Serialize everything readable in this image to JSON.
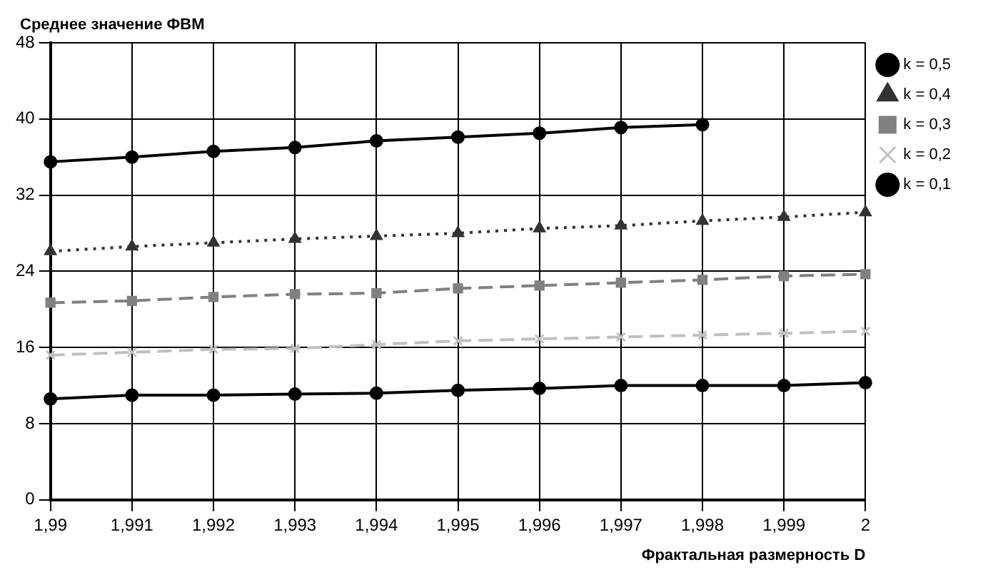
{
  "chart_data": {
    "type": "line",
    "ylabel": "Среднее значение ФВМ",
    "xlabel": "Фрактальная размерность D",
    "categories": [
      "1,99",
      "1,991",
      "1,992",
      "1,993",
      "1,994",
      "1,995",
      "1,996",
      "1,997",
      "1,998",
      "1,999",
      "2"
    ],
    "ylim": [
      0,
      48
    ],
    "yticks": [
      0,
      8,
      16,
      24,
      32,
      40,
      48
    ],
    "grid": true,
    "legend": "top right",
    "series": [
      {
        "name": "k = 0,5",
        "color": "#000000",
        "marker": "circle",
        "line_style": "solid",
        "values": [
          35.5,
          36.0,
          36.6,
          37.0,
          37.7,
          38.1,
          38.5,
          39.1,
          39.4,
          null,
          null
        ]
      },
      {
        "name": "k = 0,4",
        "color": "#333333",
        "marker": "triangle",
        "line_style": "dotted",
        "values": [
          26.1,
          26.6,
          27.0,
          27.4,
          27.7,
          28.0,
          28.5,
          28.8,
          29.3,
          29.7,
          30.2
        ]
      },
      {
        "name": "k = 0,3",
        "color": "#808080",
        "marker": "square",
        "line_style": "dashed",
        "values": [
          20.7,
          20.9,
          21.3,
          21.6,
          21.7,
          22.2,
          22.5,
          22.8,
          23.1,
          23.5,
          23.7
        ]
      },
      {
        "name": "k = 0,2",
        "color": "#c0c0c0",
        "marker": "cross",
        "line_style": "dashed",
        "values": [
          15.2,
          15.5,
          15.8,
          15.9,
          16.3,
          16.7,
          16.9,
          17.1,
          17.3,
          17.5,
          17.7
        ]
      },
      {
        "name": "k = 0,1",
        "color": "#000000",
        "marker": "circle",
        "line_style": "solid",
        "values": [
          10.6,
          11.0,
          11.0,
          11.1,
          11.2,
          11.5,
          11.7,
          12.0,
          12.0,
          12.0,
          12.3
        ]
      }
    ]
  }
}
